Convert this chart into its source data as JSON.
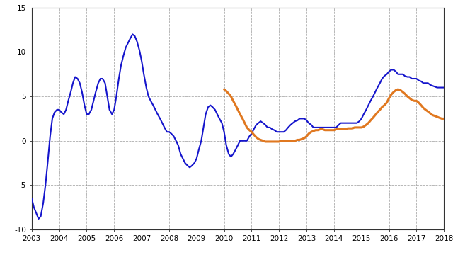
{
  "blue_x": [
    2003.0,
    2003.08,
    2003.17,
    2003.25,
    2003.33,
    2003.42,
    2003.5,
    2003.58,
    2003.67,
    2003.75,
    2003.83,
    2003.92,
    2004.0,
    2004.08,
    2004.17,
    2004.25,
    2004.33,
    2004.42,
    2004.5,
    2004.58,
    2004.67,
    2004.75,
    2004.83,
    2004.92,
    2005.0,
    2005.08,
    2005.17,
    2005.25,
    2005.33,
    2005.42,
    2005.5,
    2005.58,
    2005.67,
    2005.75,
    2005.83,
    2005.92,
    2006.0,
    2006.08,
    2006.17,
    2006.25,
    2006.33,
    2006.42,
    2006.5,
    2006.58,
    2006.67,
    2006.75,
    2006.83,
    2006.92,
    2007.0,
    2007.08,
    2007.17,
    2007.25,
    2007.33,
    2007.42,
    2007.5,
    2007.58,
    2007.67,
    2007.75,
    2007.83,
    2007.92,
    2008.0,
    2008.08,
    2008.17,
    2008.25,
    2008.33,
    2008.42,
    2008.5,
    2008.58,
    2008.67,
    2008.75,
    2008.83,
    2008.92,
    2009.0,
    2009.08,
    2009.17,
    2009.25,
    2009.33,
    2009.42,
    2009.5,
    2009.58,
    2009.67,
    2009.75,
    2009.83,
    2009.92,
    2010.0,
    2010.08,
    2010.17,
    2010.25,
    2010.33,
    2010.42,
    2010.5,
    2010.58,
    2010.67,
    2010.75,
    2010.83,
    2010.92,
    2011.0,
    2011.08,
    2011.17,
    2011.25,
    2011.33,
    2011.42,
    2011.5,
    2011.58,
    2011.67,
    2011.75,
    2011.83,
    2011.92,
    2012.0,
    2012.08,
    2012.17,
    2012.25,
    2012.33,
    2012.42,
    2012.5,
    2012.58,
    2012.67,
    2012.75,
    2012.83,
    2012.92,
    2013.0,
    2013.08,
    2013.17,
    2013.25,
    2013.33,
    2013.42,
    2013.5,
    2013.58,
    2013.67,
    2013.75,
    2013.83,
    2013.92,
    2014.0,
    2014.08,
    2014.17,
    2014.25,
    2014.33,
    2014.42,
    2014.5,
    2014.58,
    2014.67,
    2014.75,
    2014.83,
    2014.92,
    2015.0,
    2015.08,
    2015.17,
    2015.25,
    2015.33,
    2015.42,
    2015.5,
    2015.58,
    2015.67,
    2015.75,
    2015.83,
    2015.92,
    2016.0,
    2016.08,
    2016.17,
    2016.25,
    2016.33,
    2016.42,
    2016.5,
    2016.58,
    2016.67,
    2016.75,
    2016.83,
    2016.92,
    2017.0,
    2017.08,
    2017.17,
    2017.25,
    2017.33,
    2017.42,
    2017.5,
    2017.58,
    2017.67,
    2017.75,
    2017.83,
    2017.92,
    2018.0
  ],
  "blue_y": [
    -6.5,
    -7.5,
    -8.2,
    -8.8,
    -8.5,
    -7.0,
    -5.0,
    -2.5,
    0.5,
    2.5,
    3.2,
    3.5,
    3.5,
    3.2,
    3.0,
    3.5,
    4.5,
    5.5,
    6.5,
    7.2,
    7.0,
    6.5,
    5.5,
    4.0,
    3.0,
    3.0,
    3.5,
    4.5,
    5.5,
    6.5,
    7.0,
    7.0,
    6.5,
    5.0,
    3.5,
    3.0,
    3.5,
    5.0,
    7.0,
    8.5,
    9.5,
    10.5,
    11.0,
    11.5,
    12.0,
    11.8,
    11.2,
    10.2,
    9.0,
    7.5,
    6.0,
    5.0,
    4.5,
    4.0,
    3.5,
    3.0,
    2.5,
    2.0,
    1.5,
    1.0,
    1.0,
    0.8,
    0.5,
    0.0,
    -0.5,
    -1.5,
    -2.0,
    -2.5,
    -2.8,
    -3.0,
    -2.8,
    -2.5,
    -2.0,
    -1.0,
    0.0,
    1.5,
    3.0,
    3.8,
    4.0,
    3.8,
    3.5,
    3.0,
    2.5,
    2.0,
    1.0,
    -0.5,
    -1.5,
    -1.8,
    -1.5,
    -1.0,
    -0.5,
    0.0,
    0.0,
    0.0,
    0.0,
    0.5,
    0.8,
    1.3,
    1.8,
    2.0,
    2.2,
    2.0,
    1.8,
    1.5,
    1.5,
    1.3,
    1.2,
    1.0,
    1.0,
    1.0,
    1.0,
    1.2,
    1.5,
    1.8,
    2.0,
    2.2,
    2.3,
    2.5,
    2.5,
    2.5,
    2.3,
    2.0,
    1.8,
    1.5,
    1.5,
    1.5,
    1.5,
    1.5,
    1.5,
    1.5,
    1.5,
    1.5,
    1.5,
    1.5,
    1.8,
    2.0,
    2.0,
    2.0,
    2.0,
    2.0,
    2.0,
    2.0,
    2.0,
    2.2,
    2.5,
    3.0,
    3.5,
    4.0,
    4.5,
    5.0,
    5.5,
    6.0,
    6.5,
    7.0,
    7.3,
    7.5,
    7.8,
    8.0,
    8.0,
    7.8,
    7.5,
    7.5,
    7.5,
    7.3,
    7.2,
    7.2,
    7.0,
    7.0,
    7.0,
    6.8,
    6.7,
    6.5,
    6.5,
    6.5,
    6.3,
    6.2,
    6.1,
    6.0,
    6.0,
    6.0,
    6.0
  ],
  "orange_x": [
    2010.0,
    2010.08,
    2010.17,
    2010.25,
    2010.33,
    2010.42,
    2010.5,
    2010.58,
    2010.67,
    2010.75,
    2010.83,
    2010.92,
    2011.0,
    2011.08,
    2011.17,
    2011.25,
    2011.33,
    2011.42,
    2011.5,
    2011.58,
    2011.67,
    2011.75,
    2011.83,
    2011.92,
    2012.0,
    2012.08,
    2012.17,
    2012.25,
    2012.33,
    2012.42,
    2012.5,
    2012.58,
    2012.67,
    2012.75,
    2012.83,
    2012.92,
    2013.0,
    2013.08,
    2013.17,
    2013.25,
    2013.33,
    2013.42,
    2013.5,
    2013.58,
    2013.67,
    2013.75,
    2013.83,
    2013.92,
    2014.0,
    2014.08,
    2014.17,
    2014.25,
    2014.33,
    2014.42,
    2014.5,
    2014.58,
    2014.67,
    2014.75,
    2014.83,
    2014.92,
    2015.0,
    2015.08,
    2015.17,
    2015.25,
    2015.33,
    2015.42,
    2015.5,
    2015.58,
    2015.67,
    2015.75,
    2015.83,
    2015.92,
    2016.0,
    2016.08,
    2016.17,
    2016.25,
    2016.33,
    2016.42,
    2016.5,
    2016.58,
    2016.67,
    2016.75,
    2016.83,
    2016.92,
    2017.0,
    2017.08,
    2017.17,
    2017.25,
    2017.33,
    2017.42,
    2017.5,
    2017.58,
    2017.67,
    2017.75,
    2017.83,
    2017.92,
    2018.0
  ],
  "orange_y": [
    5.8,
    5.6,
    5.3,
    5.0,
    4.5,
    4.0,
    3.5,
    3.0,
    2.5,
    2.0,
    1.5,
    1.2,
    1.0,
    0.7,
    0.4,
    0.2,
    0.1,
    0.0,
    -0.1,
    -0.1,
    -0.1,
    -0.1,
    -0.1,
    -0.1,
    -0.1,
    0.0,
    0.0,
    0.0,
    0.0,
    0.0,
    0.0,
    0.0,
    0.1,
    0.1,
    0.2,
    0.3,
    0.5,
    0.8,
    1.0,
    1.1,
    1.2,
    1.2,
    1.3,
    1.3,
    1.2,
    1.2,
    1.2,
    1.2,
    1.2,
    1.3,
    1.3,
    1.3,
    1.3,
    1.3,
    1.4,
    1.4,
    1.4,
    1.5,
    1.5,
    1.5,
    1.5,
    1.6,
    1.8,
    2.0,
    2.3,
    2.6,
    2.9,
    3.2,
    3.5,
    3.8,
    4.0,
    4.3,
    4.8,
    5.2,
    5.5,
    5.7,
    5.8,
    5.7,
    5.5,
    5.3,
    5.0,
    4.8,
    4.6,
    4.5,
    4.5,
    4.3,
    4.0,
    3.7,
    3.5,
    3.3,
    3.1,
    2.9,
    2.8,
    2.7,
    2.6,
    2.5,
    2.5
  ],
  "blue_color": "#1515cc",
  "orange_color": "#e07820",
  "bg_color": "#ffffff",
  "grid_color": "#888888",
  "xlim": [
    2003,
    2018
  ],
  "ylim": [
    -10,
    15
  ],
  "yticks": [
    -10,
    -5,
    0,
    5,
    10,
    15
  ],
  "xticks": [
    2003,
    2004,
    2005,
    2006,
    2007,
    2008,
    2009,
    2010,
    2011,
    2012,
    2013,
    2014,
    2015,
    2016,
    2017,
    2018
  ],
  "xtick_labels": [
    "2003",
    "2004",
    "2005",
    "2006",
    "2007",
    "2008",
    "2009",
    "2010",
    "2011",
    "2012",
    "2013",
    "2014",
    "2015",
    "2016",
    "2017",
    "2018"
  ],
  "blue_lw": 1.5,
  "orange_lw": 2.2
}
